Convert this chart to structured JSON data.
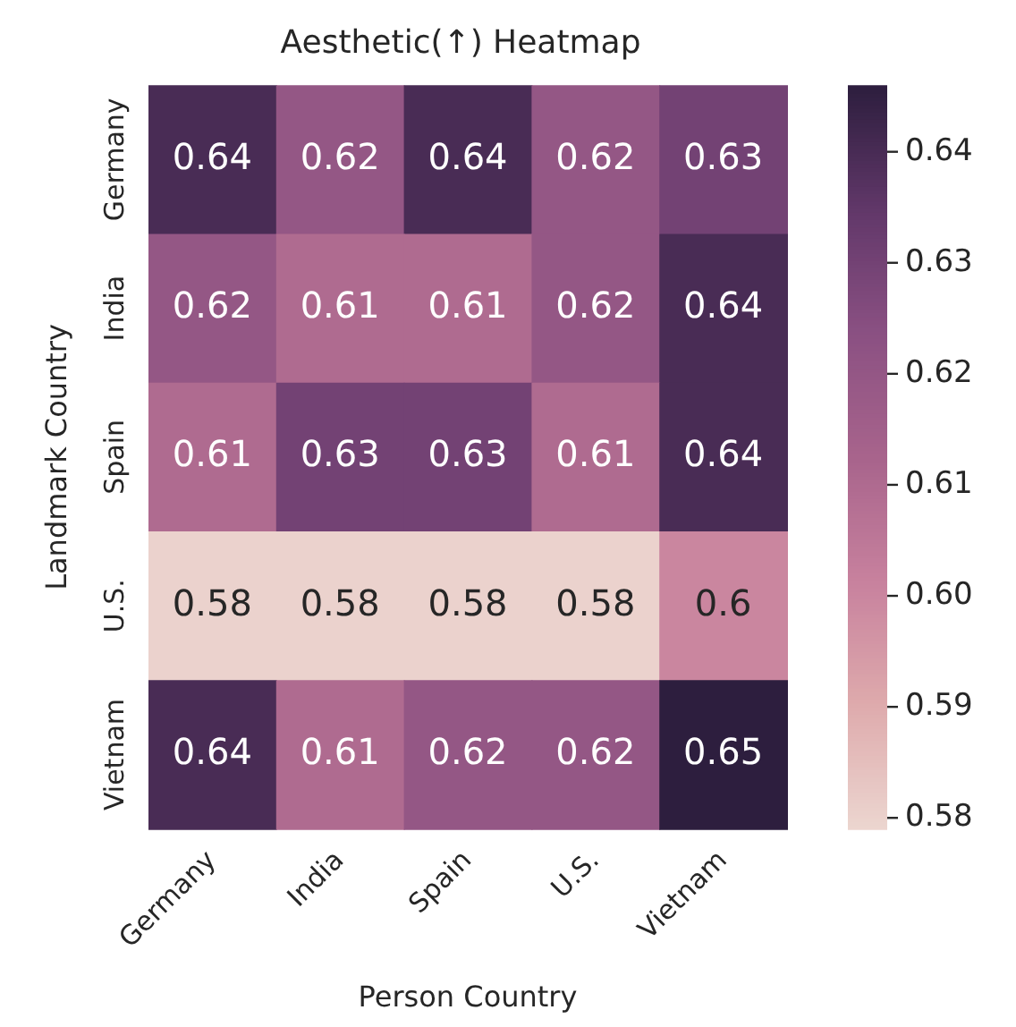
{
  "chart_data": {
    "type": "heatmap",
    "title": "Aesthetic(↑) Heatmap",
    "xlabel": "Person Country",
    "ylabel": "Landmark Country",
    "categories": [
      "Germany",
      "India",
      "Spain",
      "U.S.",
      "Vietnam"
    ],
    "y_categories": [
      "Germany",
      "India",
      "Spain",
      "U.S.",
      "Vietnam"
    ],
    "cells": [
      [
        0.64,
        0.62,
        0.64,
        0.62,
        0.63
      ],
      [
        0.62,
        0.61,
        0.61,
        0.62,
        0.64
      ],
      [
        0.61,
        0.63,
        0.63,
        0.61,
        0.64
      ],
      [
        0.58,
        0.58,
        0.58,
        0.58,
        0.6
      ],
      [
        0.64,
        0.61,
        0.62,
        0.62,
        0.646
      ]
    ],
    "cell_labels": [
      [
        "0.64",
        "0.62",
        "0.64",
        "0.62",
        "0.63"
      ],
      [
        "0.62",
        "0.61",
        "0.61",
        "0.62",
        "0.64"
      ],
      [
        "0.61",
        "0.63",
        "0.63",
        "0.61",
        "0.64"
      ],
      [
        "0.58",
        "0.58",
        "0.58",
        "0.58",
        "0.6"
      ],
      [
        "0.64",
        "0.61",
        "0.62",
        "0.62",
        "0.65"
      ]
    ],
    "clim": [
      0.579,
      0.646
    ],
    "cticks": [
      {
        "value": 0.58,
        "label": "0.58"
      },
      {
        "value": 0.59,
        "label": "0.59"
      },
      {
        "value": 0.6,
        "label": "0.60"
      },
      {
        "value": 0.61,
        "label": "0.61"
      },
      {
        "value": 0.62,
        "label": "0.62"
      },
      {
        "value": 0.63,
        "label": "0.63"
      },
      {
        "value": 0.64,
        "label": "0.64"
      }
    ]
  }
}
